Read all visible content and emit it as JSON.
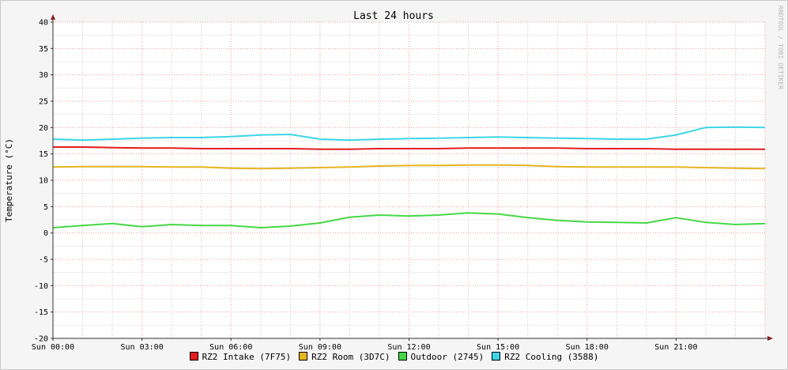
{
  "chart_data": {
    "type": "line",
    "title": "Last 24 hours",
    "ylabel": "Temperature (°C)",
    "ylim": [
      -20,
      40
    ],
    "y_ticks": [
      40,
      35,
      30,
      25,
      20,
      15,
      10,
      5,
      0,
      -5,
      -10,
      -15,
      -20
    ],
    "x_range_hours": [
      0,
      24
    ],
    "x_ticks": [
      {
        "hour": 0,
        "label": "Sun 00:00"
      },
      {
        "hour": 3,
        "label": "Sun 03:00"
      },
      {
        "hour": 6,
        "label": "Sun 06:00"
      },
      {
        "hour": 9,
        "label": "Sun 09:00"
      },
      {
        "hour": 12,
        "label": "Sun 12:00"
      },
      {
        "hour": 15,
        "label": "Sun 15:00"
      },
      {
        "hour": 18,
        "label": "Sun 18:00"
      },
      {
        "hour": 21,
        "label": "Sun 21:00"
      }
    ],
    "grid": true,
    "legend_position": "bottom",
    "watermark": "RRDTOOL / TOBI OETIKER",
    "series": [
      {
        "name": "RZ2 Intake (7F75)",
        "color": "#e41c1c",
        "x": [
          0,
          1,
          2,
          3,
          4,
          5,
          6,
          7,
          8,
          9,
          10,
          11,
          12,
          13,
          14,
          15,
          16,
          17,
          18,
          19,
          20,
          21,
          22,
          23,
          24
        ],
        "values": [
          16.3,
          16.3,
          16.2,
          16.1,
          16.1,
          16.0,
          16.0,
          16.0,
          16.0,
          15.9,
          15.9,
          16.0,
          16.0,
          16.0,
          16.1,
          16.1,
          16.1,
          16.1,
          16.0,
          16.0,
          16.0,
          15.9,
          15.9,
          15.9,
          15.9
        ]
      },
      {
        "name": "RZ2 Room (3D7C)",
        "color": "#e6b520",
        "x": [
          0,
          1,
          2,
          3,
          4,
          5,
          6,
          7,
          8,
          9,
          10,
          11,
          12,
          13,
          14,
          15,
          16,
          17,
          18,
          19,
          20,
          21,
          22,
          23,
          24
        ],
        "values": [
          12.5,
          12.6,
          12.6,
          12.6,
          12.5,
          12.5,
          12.3,
          12.2,
          12.3,
          12.4,
          12.5,
          12.7,
          12.8,
          12.8,
          12.9,
          12.9,
          12.8,
          12.6,
          12.5,
          12.5,
          12.5,
          12.5,
          12.4,
          12.3,
          12.2
        ]
      },
      {
        "name": "Outdoor (2745)",
        "color": "#46d846",
        "x": [
          0,
          1,
          2,
          3,
          4,
          5,
          6,
          7,
          8,
          9,
          10,
          11,
          12,
          13,
          14,
          15,
          16,
          17,
          18,
          19,
          20,
          21,
          22,
          23,
          24
        ],
        "values": [
          1.0,
          1.4,
          1.8,
          1.2,
          1.6,
          1.4,
          1.4,
          1.0,
          1.3,
          1.9,
          3.0,
          3.4,
          3.2,
          3.4,
          3.8,
          3.6,
          2.9,
          2.4,
          2.1,
          2.0,
          1.9,
          2.9,
          2.0,
          1.6,
          1.8
        ]
      },
      {
        "name": "RZ2 Cooling (3588)",
        "color": "#3cd6e6",
        "x": [
          0,
          1,
          2,
          3,
          4,
          5,
          6,
          7,
          8,
          9,
          10,
          11,
          12,
          13,
          14,
          15,
          16,
          17,
          18,
          19,
          20,
          21,
          22,
          23,
          24
        ],
        "values": [
          17.8,
          17.6,
          17.8,
          18.0,
          18.1,
          18.1,
          18.3,
          18.6,
          18.7,
          17.8,
          17.6,
          17.8,
          17.9,
          18.0,
          18.1,
          18.2,
          18.1,
          18.0,
          17.9,
          17.8,
          17.8,
          18.6,
          20.0,
          20.1,
          20.0
        ]
      }
    ]
  }
}
